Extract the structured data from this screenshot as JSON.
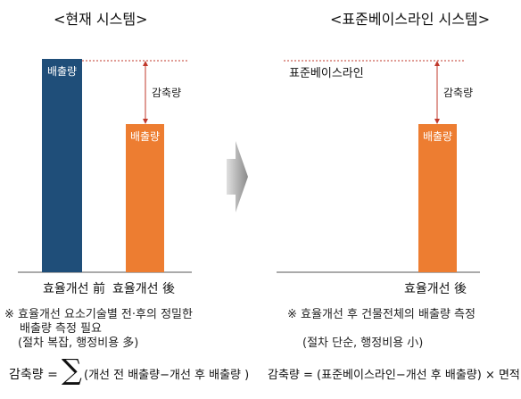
{
  "left_panel": {
    "title": "<현재 시스템>",
    "bar_before_label": "배출량",
    "bar_after_label": "배출량",
    "reduction_label": "감축량",
    "x_label_before": "효율개선 前",
    "x_label_after": "효율개선 後",
    "note_line1": "※ 효율개선 요소기술별 전·후의 정밀한",
    "note_line2": "배출량 측정 필요",
    "note_line3": "(절차 복잡, 행정비용 多)",
    "formula_lhs": "감축량 =",
    "formula_sigma": "∑",
    "formula_rhs": "(개선 전 배출량−개선 후 배출량 )"
  },
  "right_panel": {
    "title": "<표준베이스라인 시스템>",
    "baseline_label": "표준베이스라인",
    "reduction_label": "감축량",
    "bar_label": "배출량",
    "x_label": "효율개선 後",
    "note_line1": "※ 효율개선 후 건물전체의 배출량 측정",
    "note_line2": "(절차 단순, 행정비용 小)",
    "formula": "감축량 =   (표준베이스라인−개선 후 배출량) × 면적"
  },
  "chart_data": [
    {
      "type": "bar",
      "title": "<현재 시스템>",
      "categories": [
        "효율개선 前",
        "효율개선 後"
      ],
      "values": [
        240,
        165
      ],
      "bar_labels": [
        "배출량",
        "배출량"
      ],
      "annotation": "감축량",
      "colors": [
        "#1f4e79",
        "#ed7d31"
      ]
    },
    {
      "type": "bar",
      "title": "<표준베이스라인 시스템>",
      "categories": [
        "효율개선 後"
      ],
      "values": [
        165
      ],
      "bar_labels": [
        "배출량"
      ],
      "baseline": 240,
      "baseline_label": "표준베이스라인",
      "annotation": "감축량",
      "colors": [
        "#ed7d31"
      ]
    }
  ],
  "colors": {
    "before_bar": "#1f4e79",
    "after_bar": "#ed7d31",
    "arrow": "#c0392b",
    "baseline": "#c0392b",
    "transition_arrow": "#999999"
  }
}
